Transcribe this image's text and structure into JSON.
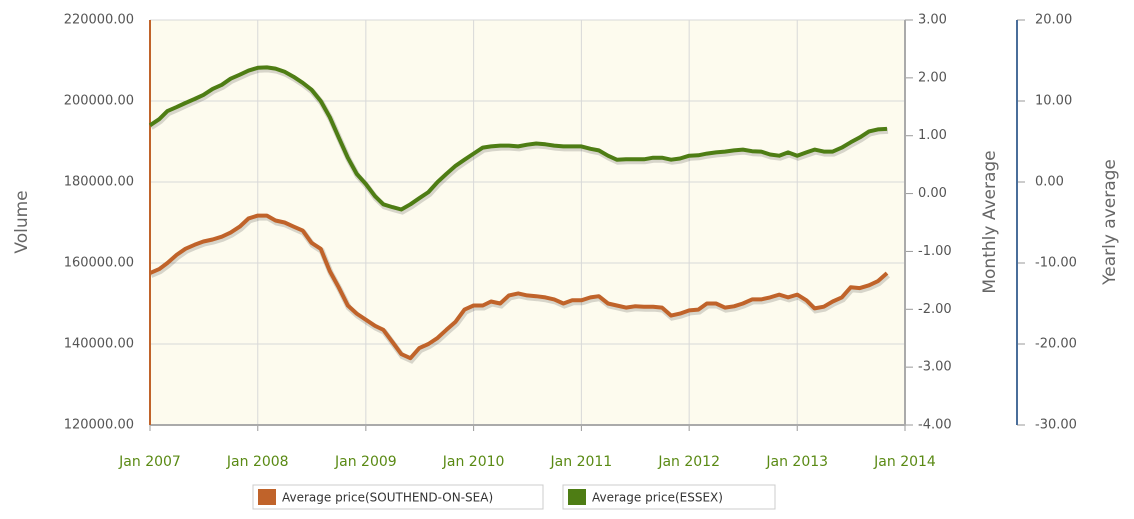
{
  "chart_data": {
    "type": "line",
    "y_label": "Volume",
    "y2_label": "Monthly Average",
    "y3_label": "Yearly average",
    "x": [
      "Jan 2007",
      "Feb 2007",
      "Mar 2007",
      "Apr 2007",
      "May 2007",
      "Jun 2007",
      "Jul 2007",
      "Aug 2007",
      "Sep 2007",
      "Oct 2007",
      "Nov 2007",
      "Dec 2007",
      "Jan 2008",
      "Feb 2008",
      "Mar 2008",
      "Apr 2008",
      "May 2008",
      "Jun 2008",
      "Jul 2008",
      "Aug 2008",
      "Sep 2008",
      "Oct 2008",
      "Nov 2008",
      "Dec 2008",
      "Jan 2009",
      "Feb 2009",
      "Mar 2009",
      "Apr 2009",
      "May 2009",
      "Jun 2009",
      "Jul 2009",
      "Aug 2009",
      "Sep 2009",
      "Oct 2009",
      "Nov 2009",
      "Dec 2009",
      "Jan 2010",
      "Feb 2010",
      "Mar 2010",
      "Apr 2010",
      "May 2010",
      "Jun 2010",
      "Jul 2010",
      "Aug 2010",
      "Sep 2010",
      "Oct 2010",
      "Nov 2010",
      "Dec 2010",
      "Jan 2011",
      "Feb 2011",
      "Mar 2011",
      "Apr 2011",
      "May 2011",
      "Jun 2011",
      "Jul 2011",
      "Aug 2011",
      "Sep 2011",
      "Oct 2011",
      "Nov 2011",
      "Dec 2011",
      "Jan 2012",
      "Feb 2012",
      "Mar 2012",
      "Apr 2012",
      "May 2012",
      "Jun 2012",
      "Jul 2012",
      "Aug 2012",
      "Sep 2012",
      "Oct 2012",
      "Nov 2012",
      "Dec 2012",
      "Jan 2013",
      "Feb 2013",
      "Mar 2013",
      "Apr 2013",
      "May 2013",
      "Jun 2013",
      "Jul 2013",
      "Aug 2013",
      "Sep 2013",
      "Oct 2013",
      "Nov 2013"
    ],
    "xlim": [
      "Jan 2007",
      "Jan 2014"
    ],
    "xticks": [
      "Jan 2007",
      "Jan 2008",
      "Jan 2009",
      "Jan 2010",
      "Jan 2011",
      "Jan 2012",
      "Jan 2013",
      "Jan 2014"
    ],
    "series": [
      {
        "name": "Average price(SOUTHEND-ON-SEA)",
        "color": "#c0632a",
        "values": [
          157500,
          158500,
          160000,
          162000,
          163500,
          164500,
          165300,
          165800,
          166500,
          167500,
          169000,
          171000,
          171700,
          171700,
          170500,
          170000,
          169000,
          168000,
          165000,
          163500,
          158000,
          154000,
          149500,
          147500,
          146000,
          144500,
          143500,
          140500,
          137500,
          136500,
          139000,
          140000,
          141500,
          143500,
          145500,
          148500,
          149500,
          149500,
          150500,
          150000,
          152000,
          152500,
          152000,
          151800,
          151500,
          151000,
          150000,
          150800,
          150800,
          151500,
          151800,
          150000,
          149500,
          149000,
          149300,
          149200,
          149200,
          149000,
          147000,
          147500,
          148300,
          148500,
          150000,
          150000,
          149000,
          149300,
          150000,
          151000,
          151000,
          151500,
          152200,
          151500,
          152200,
          150800,
          148800,
          149200,
          150500,
          151500,
          154000,
          153800,
          154500,
          155500,
          157500
        ]
      },
      {
        "name": "Average price(ESSEX)",
        "color": "#4e7d14",
        "values": [
          194000,
          195500,
          197500,
          198500,
          199500,
          200500,
          201500,
          203000,
          204000,
          205500,
          206500,
          207500,
          208200,
          208300,
          208000,
          207200,
          206000,
          204500,
          202800,
          200000,
          196000,
          191000,
          186000,
          182000,
          179500,
          176500,
          174500,
          173800,
          173200,
          174500,
          176000,
          177500,
          180000,
          182000,
          184000,
          185500,
          187000,
          188500,
          188800,
          189000,
          189000,
          188800,
          189200,
          189500,
          189300,
          189000,
          188800,
          188800,
          188800,
          188200,
          187800,
          186500,
          185500,
          185600,
          185600,
          185600,
          186000,
          186000,
          185500,
          185800,
          186500,
          186600,
          187000,
          187300,
          187500,
          187800,
          188000,
          187600,
          187500,
          186800,
          186500,
          187300,
          186500,
          187300,
          188000,
          187500,
          187500,
          188500,
          189800,
          191000,
          192500,
          193000,
          193100
        ]
      }
    ],
    "ylim": [
      120000,
      220000
    ],
    "yticks": [
      {
        "value": 120000,
        "label": "120000.00"
      },
      {
        "value": 140000,
        "label": "140000.00"
      },
      {
        "value": 160000,
        "label": "160000.00"
      },
      {
        "value": 180000,
        "label": "180000.00"
      },
      {
        "value": 200000,
        "label": "200000.00"
      },
      {
        "value": 220000,
        "label": "220000.00"
      }
    ],
    "y2lim": [
      -4,
      3
    ],
    "y2ticks": [
      {
        "value": -4,
        "label": "-4.00"
      },
      {
        "value": -3,
        "label": "-3.00"
      },
      {
        "value": -2,
        "label": "-2.00"
      },
      {
        "value": -1,
        "label": "-1.00"
      },
      {
        "value": 0,
        "label": "0.00"
      },
      {
        "value": 1,
        "label": "1.00"
      },
      {
        "value": 2,
        "label": "2.00"
      },
      {
        "value": 3,
        "label": "3.00"
      }
    ],
    "y3lim": [
      -30,
      20
    ],
    "y3ticks": [
      {
        "value": -30,
        "label": "-30.00"
      },
      {
        "value": -20,
        "label": "-20.00"
      },
      {
        "value": -10,
        "label": "-10.00"
      },
      {
        "value": 0,
        "label": "0.00"
      },
      {
        "value": 10,
        "label": "10.00"
      },
      {
        "value": 20,
        "label": "20.00"
      }
    ],
    "grid": true
  }
}
